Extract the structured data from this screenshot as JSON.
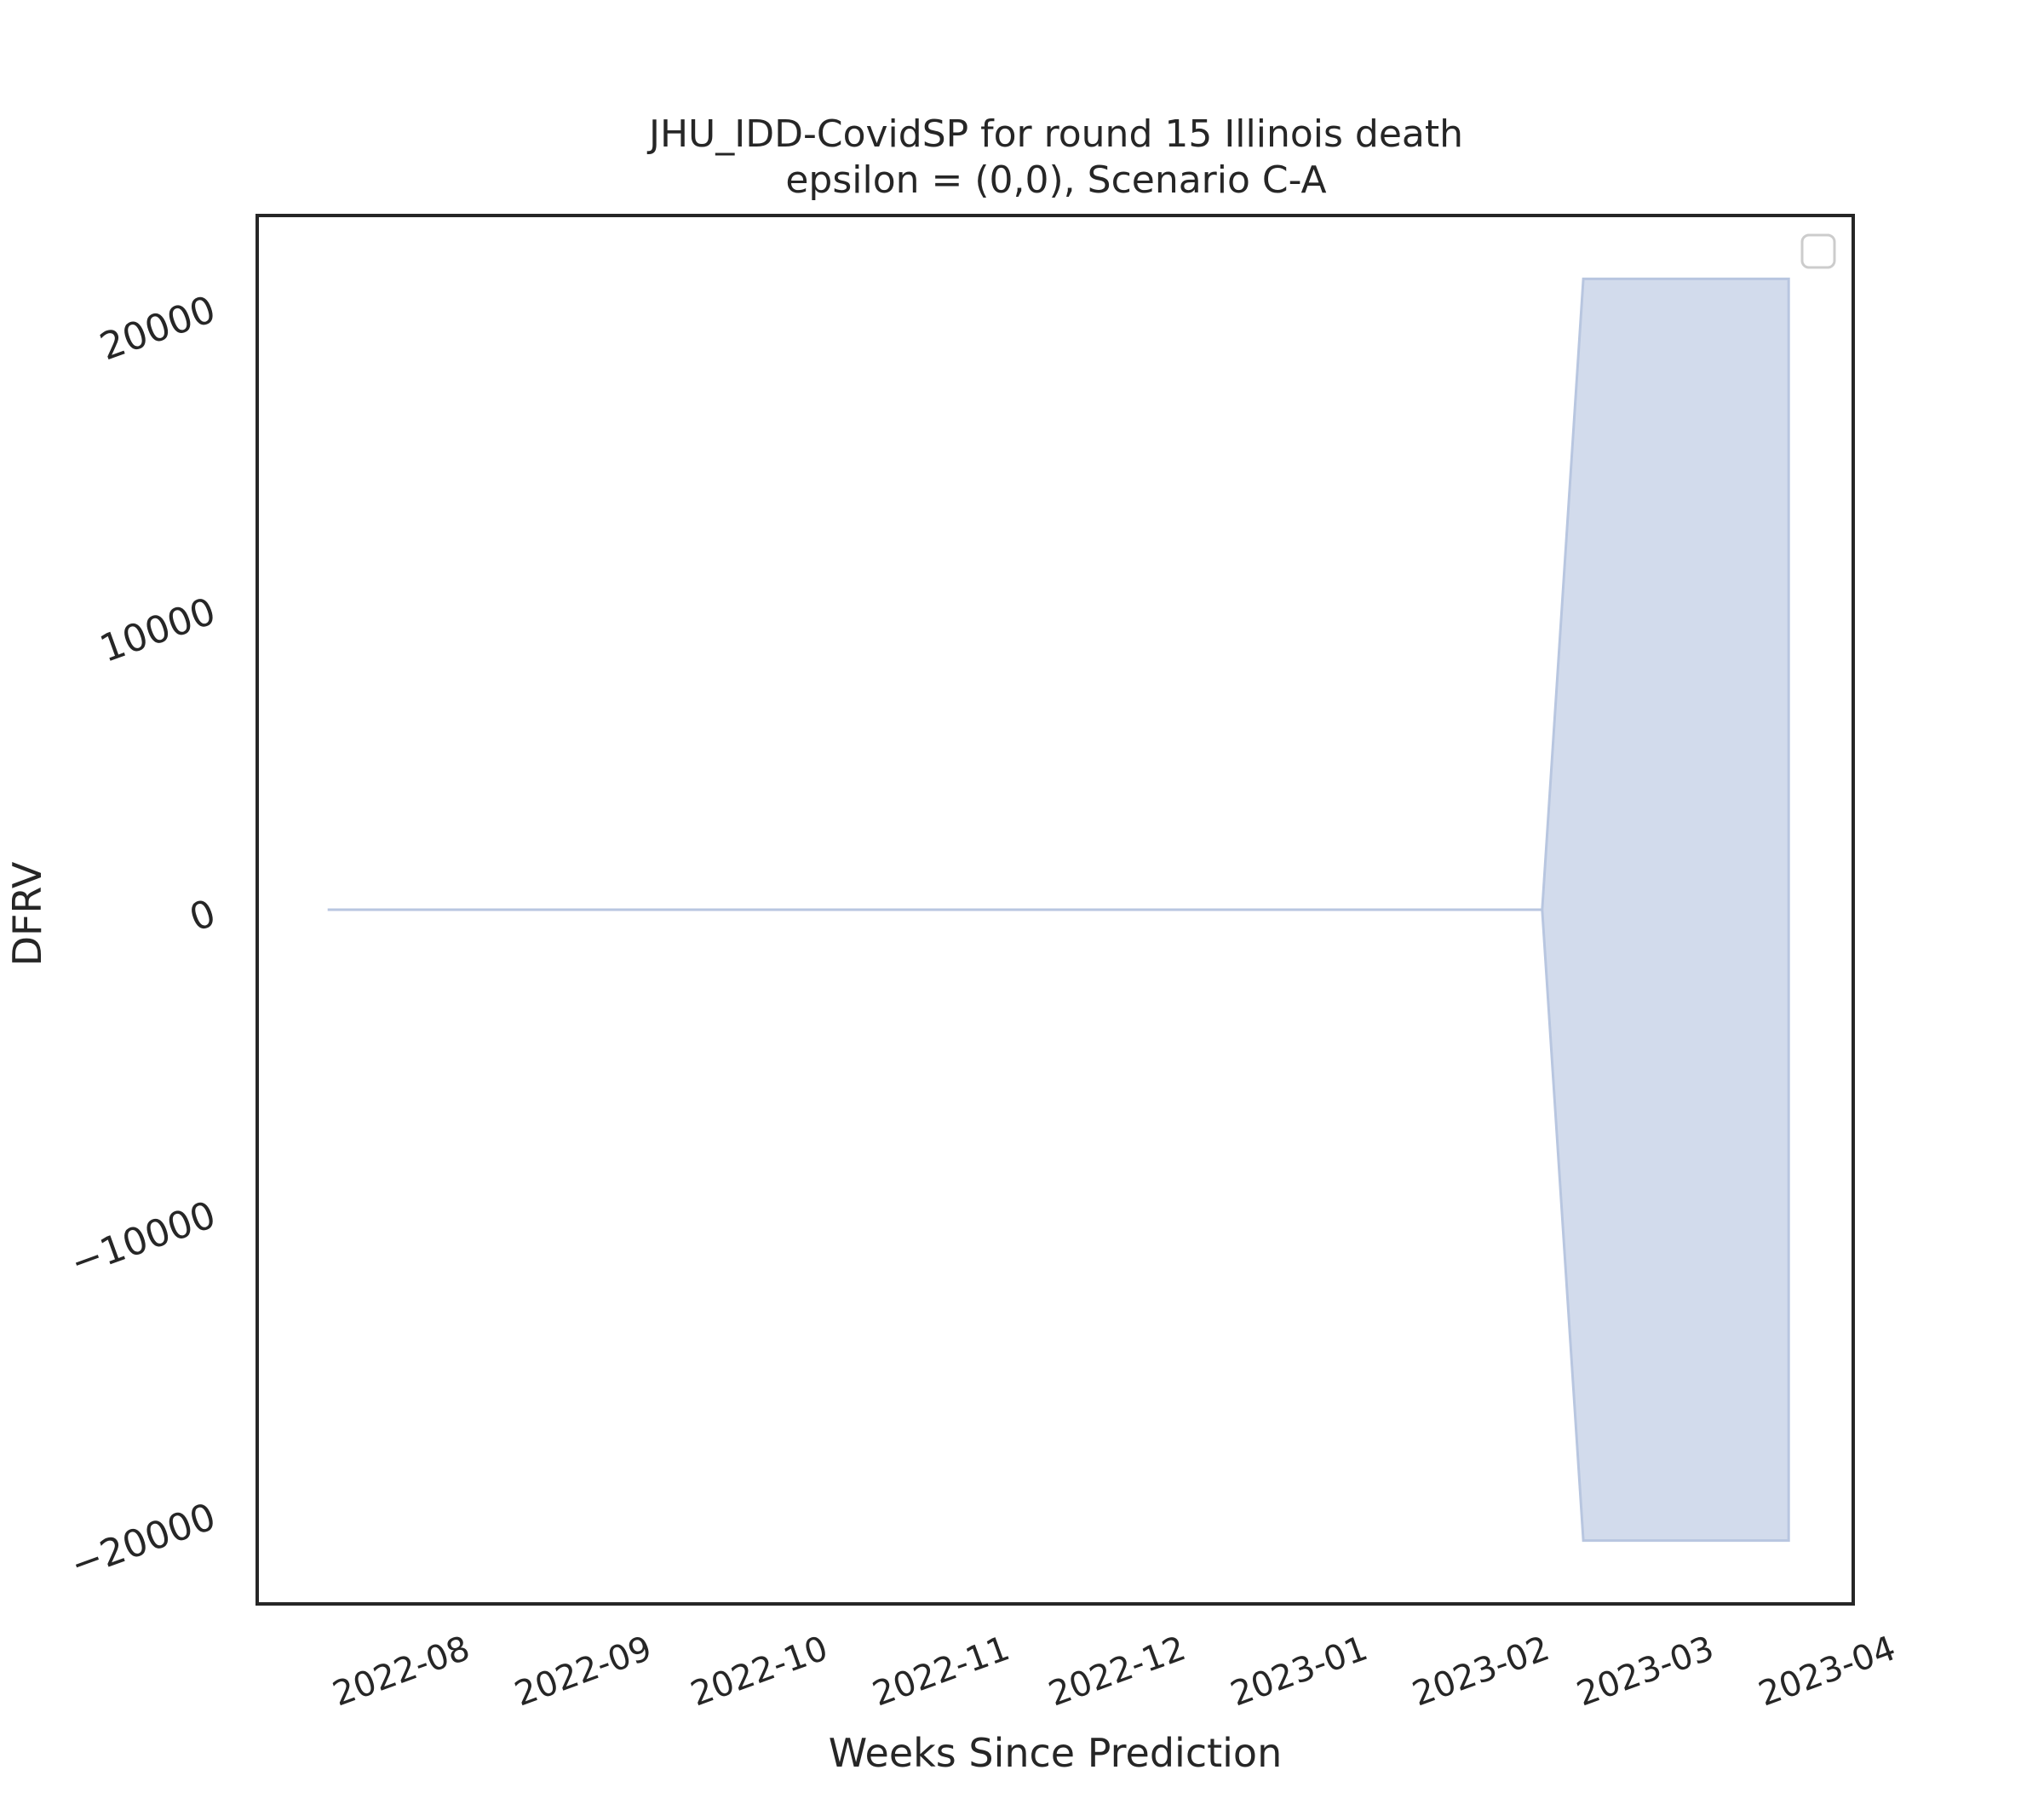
{
  "chart_data": {
    "type": "area",
    "title": "JHU_IDD-CovidSP for round 15 Illinois death",
    "subtitle": "epsilon = (0,0), Scenario C-A",
    "xlabel": "Weeks Since Prediction",
    "ylabel": "DFRV",
    "x_ticks": [
      "2022-08",
      "2022-09",
      "2022-10",
      "2022-11",
      "2022-12",
      "2023-01",
      "2023-02",
      "2023-03",
      "2023-04"
    ],
    "y_ticks": [
      "20000",
      "10000",
      "0",
      "−10000",
      "−20000"
    ],
    "y_tick_values": [
      20000,
      10000,
      0,
      -10000,
      -20000
    ],
    "xlim": [
      "2022-07-07",
      "2023-04-05"
    ],
    "ylim": [
      -23000,
      23000
    ],
    "grid": false,
    "legend": {
      "placement": "top-right",
      "entries": []
    },
    "colors": {
      "band_fill": "#d2dbec",
      "band_edge": "#b8c6e0",
      "axes": "#262626"
    },
    "series": [
      {
        "x": [
          "2022-07-19",
          "2023-02-11",
          "2023-02-18",
          "2023-03-25"
        ],
        "upper": [
          0,
          0,
          20900,
          20900
        ],
        "lower": [
          0,
          0,
          -20900,
          -20900
        ]
      }
    ]
  }
}
